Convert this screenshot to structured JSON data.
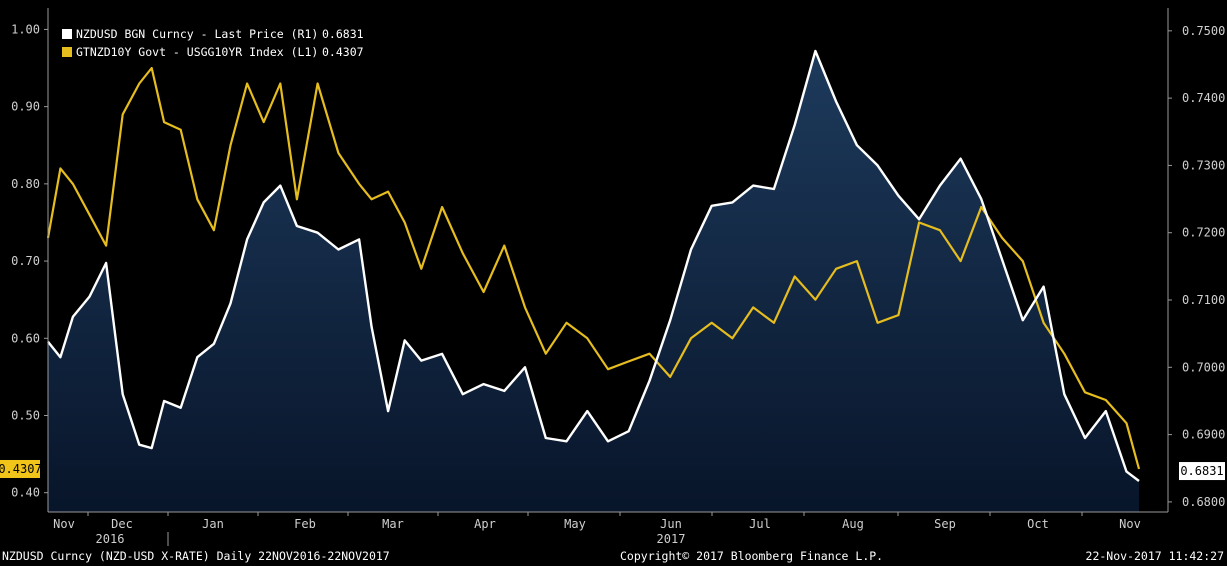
{
  "colors": {
    "background": "#000000",
    "area_top": "#1d3a5c",
    "area_bottom": "#08152a",
    "nzdusd": "#ffffff",
    "gtnzd": "#e6bd1e",
    "tick_text": "#cfcfcf"
  },
  "legend": [
    {
      "name": "NZDUSD BGN Curncy - Last Price (R1)",
      "value": "0.6831",
      "swatch": "#ffffff"
    },
    {
      "name": "GTNZD10Y Govt - USGG10YR Index (L1)",
      "value": "0.4307",
      "swatch": "#e6bd1e"
    }
  ],
  "footer": {
    "left": "NZDUSD Curncy (NZD-USD X-RATE)  Daily 22NOV2016-22NOV2017",
    "center": "Copyright© 2017 Bloomberg Finance L.P.",
    "right": "22-Nov-2017 11:42:27"
  },
  "chart_data": {
    "type": "line",
    "x_labels": [
      "Nov",
      "Dec",
      "Jan",
      "Feb",
      "Mar",
      "Apr",
      "May",
      "Jun",
      "Jul",
      "Aug",
      "Sep",
      "Oct",
      "Nov"
    ],
    "year_labels": [
      "2016",
      "2017"
    ],
    "left_axis": {
      "ticks": [
        "1.00",
        "0.90",
        "0.80",
        "0.70",
        "0.60",
        "0.50",
        "0.40"
      ],
      "ylim": [
        0.375,
        1.02
      ]
    },
    "right_axis": {
      "ticks": [
        "0.7500",
        "0.7400",
        "0.7300",
        "0.7200",
        "0.7100",
        "0.7000",
        "0.6900",
        "0.6800"
      ],
      "ylim": [
        0.6785,
        0.7525
      ]
    },
    "last_value_labels": {
      "left": "0.4307",
      "right": "0.6831"
    },
    "series": [
      {
        "name": "NZDUSD BGN Curncy - Last Price (R1)",
        "axis": "right",
        "style": "area",
        "x": [
          0,
          3,
          6,
          10,
          14,
          18,
          22,
          25,
          28,
          32,
          36,
          40,
          44,
          48,
          52,
          56,
          60,
          65,
          70,
          75,
          78,
          82,
          86,
          90,
          95,
          100,
          105,
          110,
          115,
          120,
          125,
          130,
          135,
          140,
          145,
          150,
          155,
          160,
          165,
          170,
          175,
          180,
          185,
          190,
          195,
          200,
          205,
          210,
          215,
          220,
          225,
          230,
          235,
          240,
          245,
          250,
          255,
          260,
          263
        ],
        "values": [
          0.7038,
          0.7015,
          0.7075,
          0.7105,
          0.7155,
          0.696,
          0.6885,
          0.688,
          0.695,
          0.694,
          0.7015,
          0.7035,
          0.7095,
          0.719,
          0.7245,
          0.727,
          0.721,
          0.72,
          0.7175,
          0.719,
          0.706,
          0.6935,
          0.704,
          0.701,
          0.702,
          0.696,
          0.6975,
          0.6965,
          0.7,
          0.6895,
          0.689,
          0.6935,
          0.689,
          0.6905,
          0.698,
          0.707,
          0.7175,
          0.724,
          0.7245,
          0.727,
          0.7265,
          0.736,
          0.747,
          0.7395,
          0.733,
          0.73,
          0.7255,
          0.722,
          0.727,
          0.731,
          0.725,
          0.716,
          0.707,
          0.712,
          0.696,
          0.6895,
          0.6935,
          0.6845,
          0.6831
        ]
      },
      {
        "name": "GTNZD10Y Govt - USGG10YR Index (L1)",
        "axis": "left",
        "style": "line",
        "x": [
          0,
          3,
          6,
          10,
          14,
          18,
          22,
          25,
          28,
          32,
          36,
          40,
          44,
          48,
          52,
          56,
          60,
          65,
          70,
          75,
          78,
          82,
          86,
          90,
          95,
          100,
          105,
          110,
          115,
          120,
          125,
          130,
          135,
          140,
          145,
          150,
          155,
          160,
          165,
          170,
          175,
          180,
          185,
          190,
          195,
          200,
          205,
          210,
          215,
          220,
          225,
          230,
          235,
          240,
          245,
          250,
          255,
          260,
          263
        ],
        "values": [
          0.73,
          0.82,
          0.8,
          0.76,
          0.72,
          0.89,
          0.93,
          0.95,
          0.88,
          0.87,
          0.78,
          0.74,
          0.85,
          0.93,
          0.88,
          0.93,
          0.78,
          0.93,
          0.84,
          0.8,
          0.78,
          0.79,
          0.75,
          0.69,
          0.77,
          0.71,
          0.66,
          0.72,
          0.64,
          0.58,
          0.62,
          0.6,
          0.56,
          0.57,
          0.58,
          0.55,
          0.6,
          0.62,
          0.6,
          0.64,
          0.62,
          0.68,
          0.65,
          0.69,
          0.7,
          0.62,
          0.63,
          0.75,
          0.74,
          0.7,
          0.77,
          0.73,
          0.7,
          0.62,
          0.58,
          0.53,
          0.52,
          0.49,
          0.4307
        ]
      }
    ]
  }
}
